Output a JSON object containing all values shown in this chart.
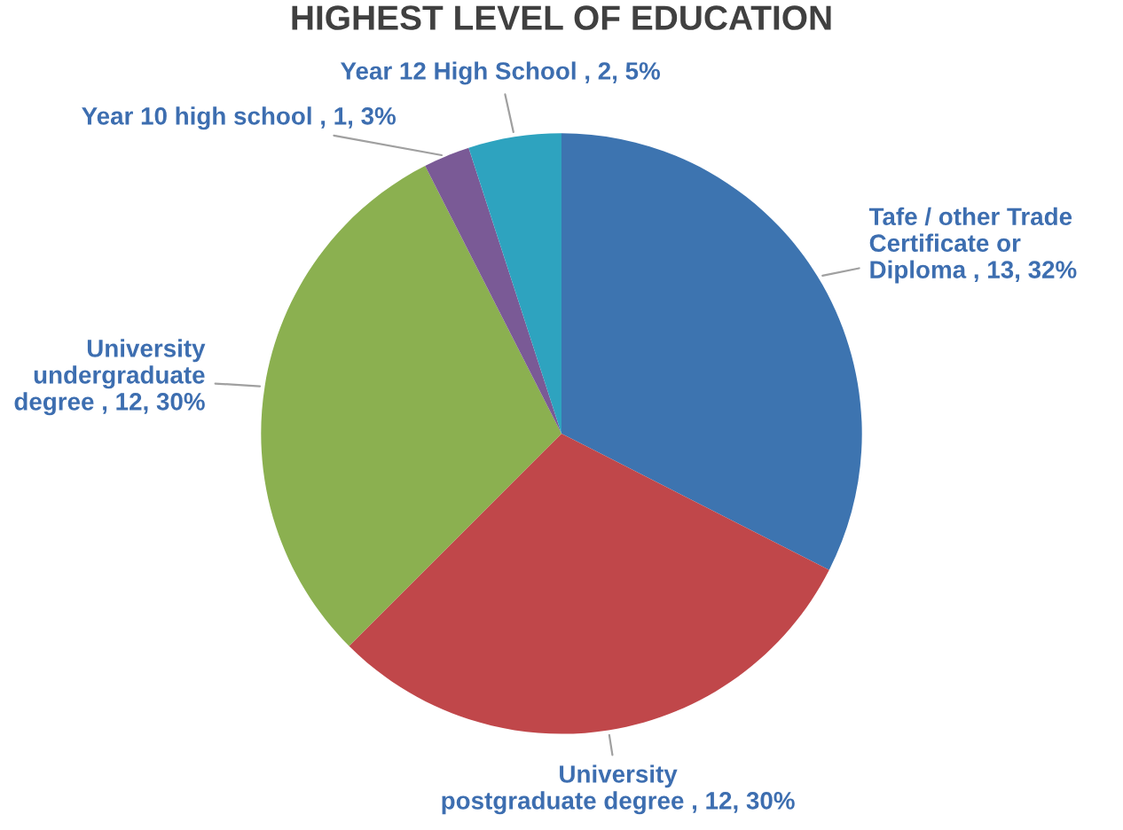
{
  "chart_data": {
    "type": "pie",
    "title": "HIGHEST LEVEL OF EDUCATION",
    "categories": [
      "Tafe / other Trade\nCertificate or\nDiploma",
      "University\npostgraduate degree",
      "University\nundergraduate\ndegree",
      "Year 10 high school",
      "Year 12 High School"
    ],
    "values": [
      13,
      12,
      12,
      1,
      2
    ],
    "value_labels": [
      "13, 32%",
      "12, 30%",
      "12, 30%",
      "1, 3%",
      "2, 5%"
    ],
    "colors": [
      "#3d74b0",
      "#c0474a",
      "#8bb050",
      "#7a5a96",
      "#2ea3bf"
    ],
    "legend": false
  }
}
